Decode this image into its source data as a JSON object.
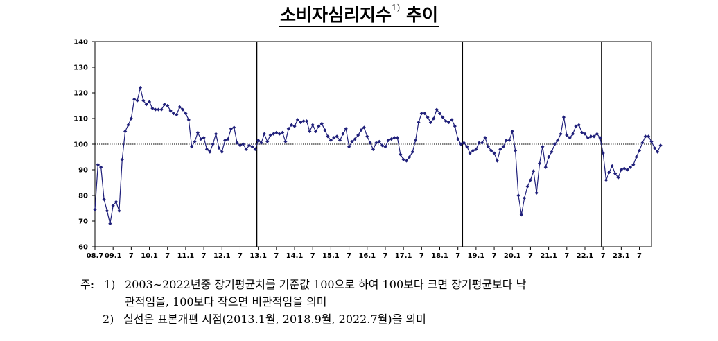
{
  "title": {
    "text": "소비자심리지수",
    "sup": "1)",
    "suffix": "추이"
  },
  "notes": {
    "prefix": "주:",
    "n1_num": "1)",
    "n1_line1": "2003∼2022년중 장기평균치를 기준값 100으로 하여 100보다 크면 장기평균보다 낙",
    "n1_line2": "관적임을, 100보다 작으면 비관적임을 의미",
    "n2_num": "2)",
    "n2_line1": "실선은 표본개편 시점(2013.1월, 2018.9월, 2022.7월)을 의미"
  },
  "chart_data": {
    "type": "line",
    "title": "소비자심리지수 추이",
    "x_tick_labels": [
      "08.7",
      "09.1",
      "7",
      "10.1",
      "7",
      "11.1",
      "7",
      "12.1",
      "7",
      "13.1",
      "7",
      "14.1",
      "7",
      "15.1",
      "7",
      "16.1",
      "7",
      "17.1",
      "7",
      "18.1",
      "7",
      "19.1",
      "7",
      "20.1",
      "7",
      "21.1",
      "7",
      "22.1",
      "7",
      "23.1",
      "7"
    ],
    "x_tick_months": [
      "2008-07",
      "2009-01",
      "2009-07",
      "2010-01",
      "2010-07",
      "2011-01",
      "2011-07",
      "2012-01",
      "2012-07",
      "2013-01",
      "2013-07",
      "2014-01",
      "2014-07",
      "2015-01",
      "2015-07",
      "2016-01",
      "2016-07",
      "2017-01",
      "2017-07",
      "2018-01",
      "2018-07",
      "2019-01",
      "2019-07",
      "2020-01",
      "2020-07",
      "2021-01",
      "2021-07",
      "2022-01",
      "2022-07",
      "2023-01",
      "2023-07"
    ],
    "y_ticks": [
      60,
      70,
      80,
      90,
      100,
      110,
      120,
      130,
      140
    ],
    "ylim": [
      60,
      140
    ],
    "reference_line": 100,
    "sample_revision_lines": [
      "2013-01",
      "2018-09",
      "2022-07"
    ],
    "series_color": "#1f1f7a",
    "start_month": "2008-07",
    "end_month": "2023-10",
    "values": [
      74.5,
      92,
      91,
      78.5,
      74,
      69,
      76,
      77.5,
      74,
      94,
      105,
      107.5,
      110,
      117.5,
      117,
      122,
      117,
      115.5,
      116.5,
      114,
      113.5,
      113.5,
      113.5,
      115.5,
      115,
      113,
      112,
      111.5,
      114.5,
      113.5,
      112,
      109.5,
      99,
      101,
      104.5,
      102,
      102.5,
      98,
      97,
      100,
      104,
      98.5,
      97,
      101.5,
      102,
      106,
      106.5,
      100.5,
      99.5,
      100,
      98,
      99.5,
      99,
      98,
      101.5,
      100.5,
      104,
      101,
      103.5,
      104,
      104.5,
      104,
      104.5,
      101,
      106,
      107.5,
      107,
      109.5,
      108.5,
      109,
      109,
      105,
      107.5,
      105,
      107,
      108,
      105.5,
      103,
      101.5,
      102.5,
      103,
      101.5,
      104,
      106,
      99,
      101,
      102,
      103.5,
      105.5,
      106.5,
      103,
      100.5,
      98,
      100.5,
      101,
      99.5,
      99,
      101.5,
      102,
      102.5,
      102.5,
      96,
      94,
      93.5,
      95,
      97,
      101.5,
      108.5,
      112,
      112,
      110.5,
      108.5,
      110,
      113.5,
      112,
      110.5,
      109,
      108.5,
      109.5,
      107,
      102,
      100,
      100.5,
      99,
      96.5,
      97.5,
      98,
      100.5,
      100.5,
      102.5,
      99,
      97.5,
      96.5,
      93.5,
      98,
      99,
      101.5,
      101.5,
      105,
      97.5,
      80,
      72.5,
      79,
      83.5,
      86,
      89.5,
      81,
      92.5,
      99,
      91,
      95,
      97,
      100,
      101.5,
      104,
      110.5,
      103.5,
      102.5,
      104,
      107,
      107.5,
      104.5,
      104,
      102.5,
      103,
      103,
      104,
      102.5,
      96.5,
      86,
      89,
      91.5,
      88.5,
      87,
      90,
      90.5,
      90,
      91,
      92,
      95,
      97.5,
      100.5,
      103,
      103,
      101,
      98.5,
      97,
      99.5
    ]
  }
}
